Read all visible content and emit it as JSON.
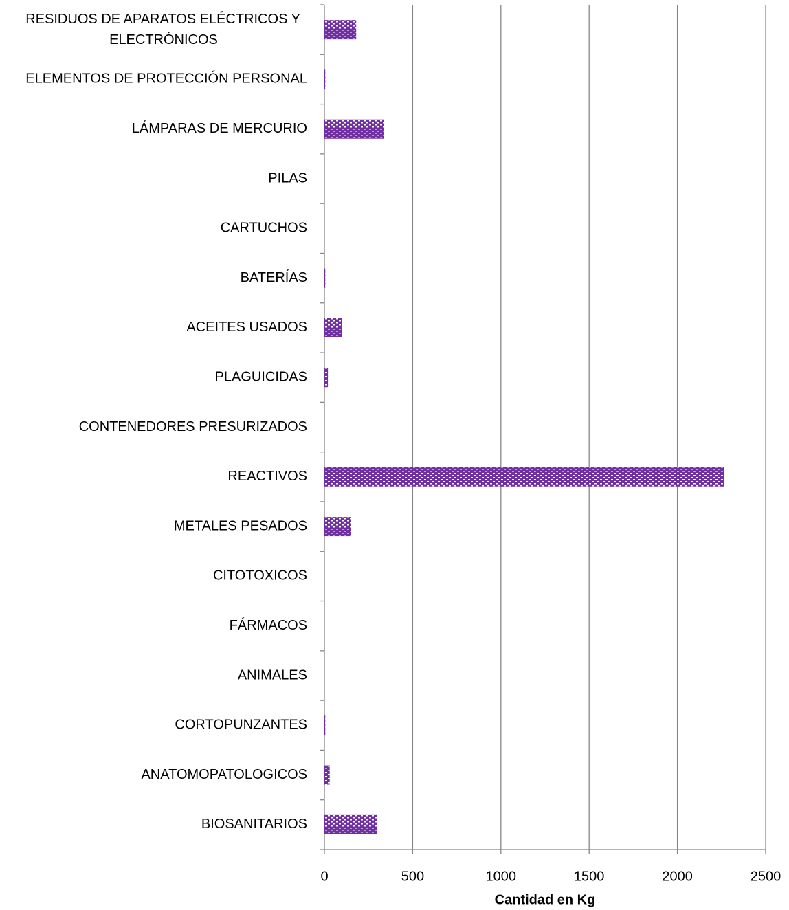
{
  "chart_data": {
    "type": "barh",
    "categories": [
      "BIOSANITARIOS",
      "ANATOMOPATOLOGICOS",
      "CORTOPUNZANTES",
      "ANIMALES",
      "FÁRMACOS",
      "CITOTOXICOS",
      "METALES PESADOS",
      "REACTIVOS",
      "CONTENEDORES PRESURIZADOS",
      "PLAGUICIDAS",
      "ACEITES USADOS",
      "BATERÍAS",
      "CARTUCHOS",
      "PILAS",
      "LÁMPARAS DE MERCURIO",
      "ELEMENTOS DE PROTECCIÓN PERSONAL",
      "RESIDUOS DE APARATOS ELÉCTRICOS Y ELECTRÓNICOS"
    ],
    "values": [
      300,
      30,
      5,
      0,
      0,
      0,
      150,
      2265,
      0,
      20,
      100,
      5,
      0,
      0,
      335,
      5,
      180
    ],
    "color": "#7030a0",
    "xlabel": "Cantidad en Kg",
    "xlim": [
      0,
      2500
    ],
    "xticks": [
      0,
      500,
      1000,
      1500,
      2000,
      2500
    ],
    "grid": true
  }
}
